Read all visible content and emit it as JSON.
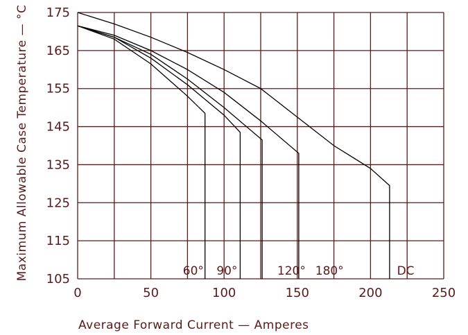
{
  "chart_data": {
    "type": "line",
    "xlabel": "Average Forward Current — Amperes",
    "ylabel": "Maximum Allowable Case Temperature — °C",
    "xlim": [
      0,
      250
    ],
    "ylim": [
      105,
      175
    ],
    "x_ticks": [
      "0",
      "50",
      "100",
      "150",
      "200",
      "250"
    ],
    "y_ticks": [
      "105",
      "115",
      "125",
      "135",
      "145",
      "155",
      "165",
      "175"
    ],
    "grid": true,
    "series": [
      {
        "name": "60°",
        "x": [
          0,
          25,
          50,
          75,
          87,
          87
        ],
        "y": [
          171.5,
          168,
          161.5,
          153,
          148.5,
          105
        ]
      },
      {
        "name": "90°",
        "x": [
          0,
          25,
          50,
          75,
          100,
          111,
          111
        ],
        "y": [
          171.5,
          168.5,
          163,
          156,
          148,
          143.5,
          105
        ]
      },
      {
        "name": "120°",
        "x": [
          0,
          25,
          50,
          75,
          100,
          126,
          126
        ],
        "y": [
          171.5,
          168.5,
          164,
          157.5,
          150,
          141.5,
          105
        ]
      },
      {
        "name": "180°",
        "x": [
          0,
          25,
          50,
          75,
          100,
          125,
          151,
          151
        ],
        "y": [
          171.5,
          169,
          165,
          160,
          154,
          146.5,
          138,
          105
        ]
      },
      {
        "name": "DC",
        "x": [
          0,
          25,
          50,
          75,
          100,
          125,
          150,
          175,
          200,
          213,
          213
        ],
        "y": [
          175,
          172,
          168.5,
          164.5,
          160,
          155,
          147.5,
          140,
          134,
          129.5,
          105
        ]
      }
    ],
    "series_labels": [
      "60°",
      "90°",
      "120°",
      "180°",
      "DC"
    ],
    "colors": {
      "axis": "#5a1a1a",
      "line": "#000000"
    }
  }
}
